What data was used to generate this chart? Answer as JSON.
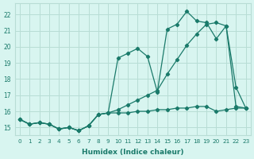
{
  "xlabel": "Humidex (Indice chaleur)",
  "bg_color": "#d8f5f0",
  "grid_color": "#b8ddd5",
  "line_color": "#1a7a6a",
  "xlim": [
    -0.5,
    23.5
  ],
  "ylim": [
    14.5,
    22.7
  ],
  "yticks": [
    15,
    16,
    17,
    18,
    19,
    20,
    21,
    22
  ],
  "xticks": [
    0,
    1,
    2,
    3,
    4,
    5,
    6,
    7,
    8,
    9,
    10,
    11,
    12,
    13,
    14,
    15,
    16,
    17,
    18,
    19,
    20,
    21,
    22,
    23
  ],
  "series1_x": [
    0,
    1,
    2,
    3,
    4,
    5,
    6,
    7,
    8,
    9,
    10,
    11,
    12,
    13,
    14,
    15,
    16,
    17,
    18,
    19,
    20,
    21,
    22,
    23
  ],
  "series1_y": [
    15.5,
    15.2,
    15.3,
    15.2,
    14.9,
    15.0,
    14.8,
    15.1,
    15.8,
    15.9,
    19.3,
    19.6,
    19.9,
    19.4,
    17.2,
    21.1,
    21.4,
    22.2,
    21.6,
    21.5,
    20.5,
    21.3,
    17.5,
    16.2
  ],
  "series2_x": [
    0,
    1,
    2,
    3,
    4,
    5,
    6,
    7,
    8,
    9,
    10,
    11,
    12,
    13,
    14,
    15,
    16,
    17,
    18,
    19,
    20,
    21,
    22,
    23
  ],
  "series2_y": [
    15.5,
    15.2,
    15.3,
    15.2,
    14.9,
    15.0,
    14.8,
    15.1,
    15.8,
    15.9,
    16.1,
    16.4,
    16.7,
    17.0,
    17.3,
    18.3,
    19.2,
    20.1,
    20.8,
    21.4,
    21.5,
    21.3,
    16.3,
    16.2
  ],
  "series3_x": [
    0,
    1,
    2,
    3,
    4,
    5,
    6,
    7,
    8,
    9,
    10,
    11,
    12,
    13,
    14,
    15,
    16,
    17,
    18,
    19,
    20,
    21,
    22,
    23
  ],
  "series3_y": [
    15.5,
    15.2,
    15.3,
    15.2,
    14.9,
    15.0,
    14.8,
    15.1,
    15.8,
    15.9,
    15.9,
    15.9,
    16.0,
    16.0,
    16.1,
    16.1,
    16.2,
    16.2,
    16.3,
    16.3,
    16.0,
    16.1,
    16.2,
    16.2
  ]
}
